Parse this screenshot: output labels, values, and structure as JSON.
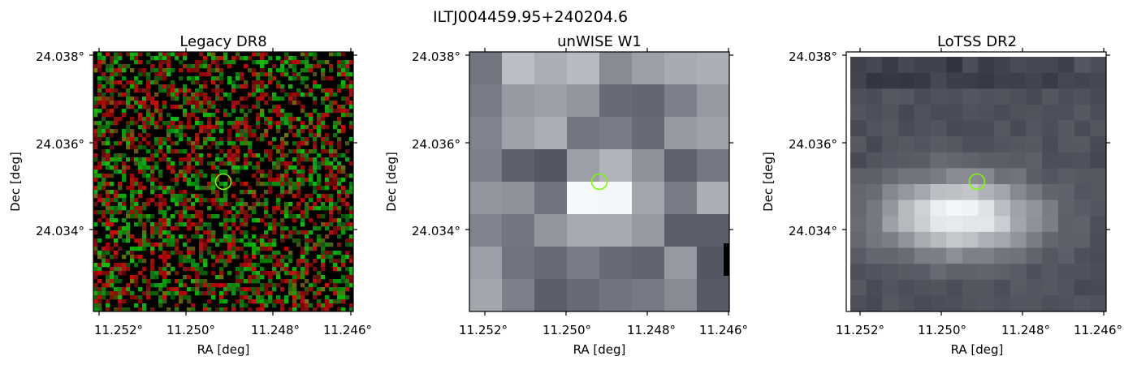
{
  "figure": {
    "suptitle": "ILTJ004459.95+240204.6",
    "circle_color": "#7CFC00",
    "panels": [
      {
        "title": "Legacy DR8",
        "xlabel": "RA [deg]",
        "ylabel": "Dec [deg]",
        "xticks": [
          "11.252°",
          "11.250°",
          "11.248°",
          "11.246°"
        ],
        "yticks": [
          "24.038°",
          "24.036°",
          "24.034°"
        ],
        "image": "legacy-rgb-noise"
      },
      {
        "title": "unWISE W1",
        "xlabel": "RA [deg]",
        "ylabel": "Dec [deg]",
        "xticks": [
          "11.252°",
          "11.250°",
          "11.248°",
          "11.246°"
        ],
        "yticks": [
          "24.038°",
          "24.036°",
          "24.034°"
        ],
        "image": "unwise-grayscale"
      },
      {
        "title": "LoTSS DR2",
        "xlabel": "RA [deg]",
        "ylabel": "Dec [deg]",
        "xticks": [
          "11.252°",
          "11.250°",
          "11.248°",
          "11.246°"
        ],
        "yticks": [
          "24.038°",
          "24.036°",
          "24.034°"
        ],
        "image": "lotss-grayscale"
      }
    ]
  }
}
